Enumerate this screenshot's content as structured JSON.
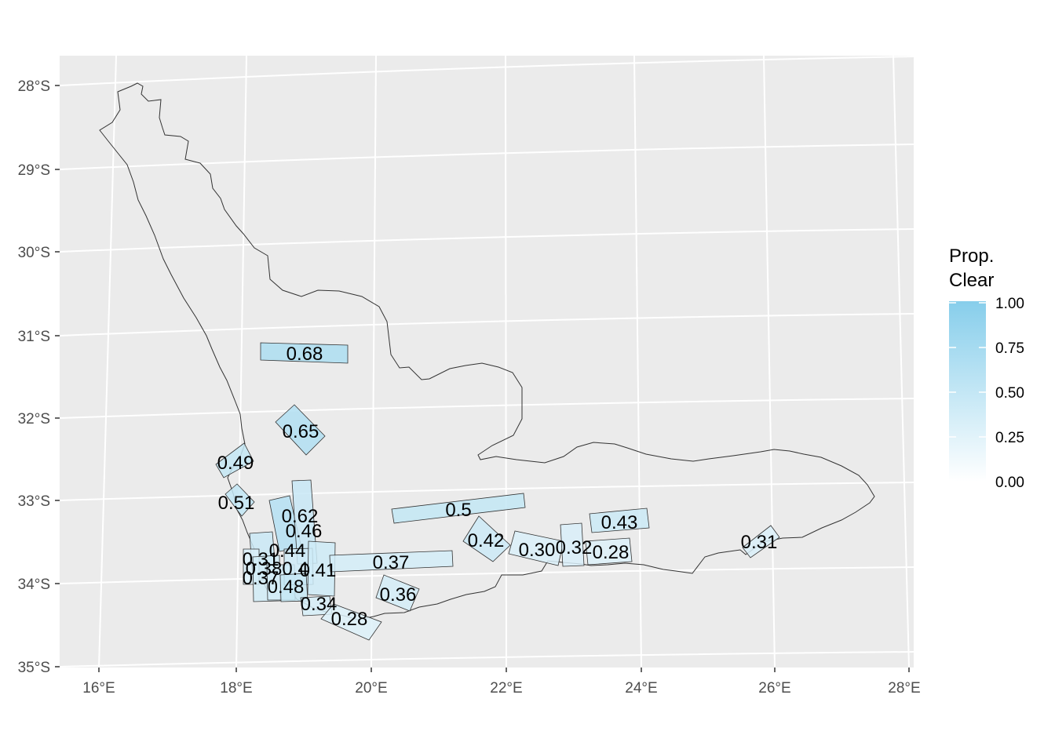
{
  "map": {
    "lon_ticks": [
      "16°E",
      "18°E",
      "20°E",
      "22°E",
      "24°E",
      "26°E",
      "28°E"
    ],
    "lat_ticks": [
      "28°S",
      "29°S",
      "30°S",
      "31°S",
      "32°S",
      "33°S",
      "34°S",
      "35°S"
    ],
    "tiles": [
      {
        "label": "0.68",
        "value": 0.68
      },
      {
        "label": "0.65",
        "value": 0.65
      },
      {
        "label": "0.49",
        "value": 0.49
      },
      {
        "label": "0.51",
        "value": 0.51
      },
      {
        "label": "0.62",
        "value": 0.62
      },
      {
        "label": "0.46",
        "value": 0.46
      },
      {
        "label": "0.44",
        "value": 0.44
      },
      {
        "label": "0.31",
        "value": 0.31
      },
      {
        "label": "0.38",
        "value": 0.38
      },
      {
        "label": "0.37",
        "value": 0.37
      },
      {
        "label": "0.4",
        "value": 0.4
      },
      {
        "label": "0.41",
        "value": 0.41
      },
      {
        "label": "0.48",
        "value": 0.48
      },
      {
        "label": "0.37",
        "value": 0.37
      },
      {
        "label": "0.34",
        "value": 0.34
      },
      {
        "label": "0.28",
        "value": 0.28
      },
      {
        "label": "0.36",
        "value": 0.36
      },
      {
        "label": "0.5",
        "value": 0.5
      },
      {
        "label": "0.42",
        "value": 0.42
      },
      {
        "label": "0.30",
        "value": 0.3
      },
      {
        "label": "0.32",
        "value": 0.32
      },
      {
        "label": "0.43",
        "value": 0.43
      },
      {
        "label": "0.28",
        "value": 0.28
      },
      {
        "label": "0.31",
        "value": 0.31
      }
    ]
  },
  "legend": {
    "title_line1": "Prop.",
    "title_line2": "Clear",
    "ticks": [
      "1.00",
      "0.75",
      "0.50",
      "0.25",
      "0.00"
    ],
    "color_low": "#ffffff",
    "color_high": "#87ceeb"
  },
  "colors": {
    "panel_bg": "#ebebeb",
    "grid": "#ffffff",
    "outline": "#333333",
    "tile_border": "#333333"
  }
}
